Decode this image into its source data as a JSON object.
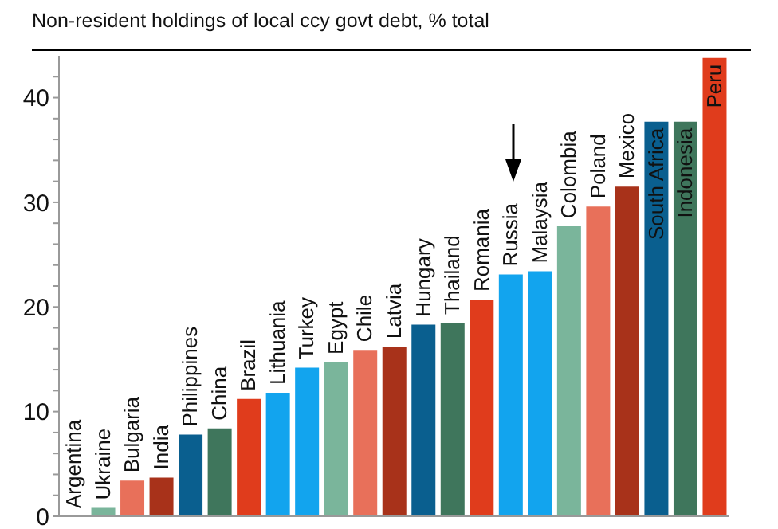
{
  "chart_data": {
    "type": "bar",
    "title": "Non-resident holdings of local ccy govt debt, % total",
    "categories": [
      "Argentina",
      "Ukraine",
      "Bulgaria",
      "India",
      "Philippines",
      "China",
      "Brazil",
      "Lithuania",
      "Turkey",
      "Egypt",
      "Chile",
      "Latvia",
      "Hungary",
      "Thailand",
      "Romania",
      "Russia",
      "Malaysia",
      "Colombia",
      "Poland",
      "Mexico",
      "South Africa",
      "Indonesia",
      "Peru"
    ],
    "values": [
      0,
      0.8,
      3.4,
      3.7,
      7.8,
      8.4,
      11.2,
      11.8,
      14.2,
      14.7,
      15.9,
      16.2,
      18.3,
      18.5,
      20.7,
      23.1,
      23.4,
      27.7,
      29.6,
      31.5,
      37.7,
      37.7,
      43.8
    ],
    "colors": [
      "#12a4ee",
      "#7ab59b",
      "#e8705a",
      "#a8321a",
      "#0a5f8f",
      "#3f765c",
      "#e03c1c",
      "#12a4ee",
      "#12a4ee",
      "#7ab59b",
      "#e8705a",
      "#a8321a",
      "#0a5f8f",
      "#3f765c",
      "#e03c1c",
      "#12a4ee",
      "#12a4ee",
      "#7ab59b",
      "#e8705a",
      "#a8321a",
      "#0a5f8f",
      "#3f765c",
      "#e03c1c"
    ],
    "ylim": [
      0,
      44
    ],
    "yticks": [
      0,
      {
        "value": 2,
        "label": null
      },
      {
        "value": 4,
        "label": null
      },
      {
        "value": 6,
        "label": null
      },
      {
        "value": 8,
        "label": null
      },
      10,
      {
        "value": 12,
        "label": null
      },
      {
        "value": 14,
        "label": null
      },
      {
        "value": 16,
        "label": null
      },
      {
        "value": 18,
        "label": null
      },
      20,
      {
        "value": 22,
        "label": null
      },
      {
        "value": 24,
        "label": null
      },
      {
        "value": 26,
        "label": null
      },
      {
        "value": 28,
        "label": null
      },
      30,
      {
        "value": 32,
        "label": null
      },
      {
        "value": 34,
        "label": null
      },
      {
        "value": 36,
        "label": null
      },
      {
        "value": 38,
        "label": null
      },
      40,
      {
        "value": 42,
        "label": null
      }
    ],
    "grid": false,
    "legend": false
  }
}
